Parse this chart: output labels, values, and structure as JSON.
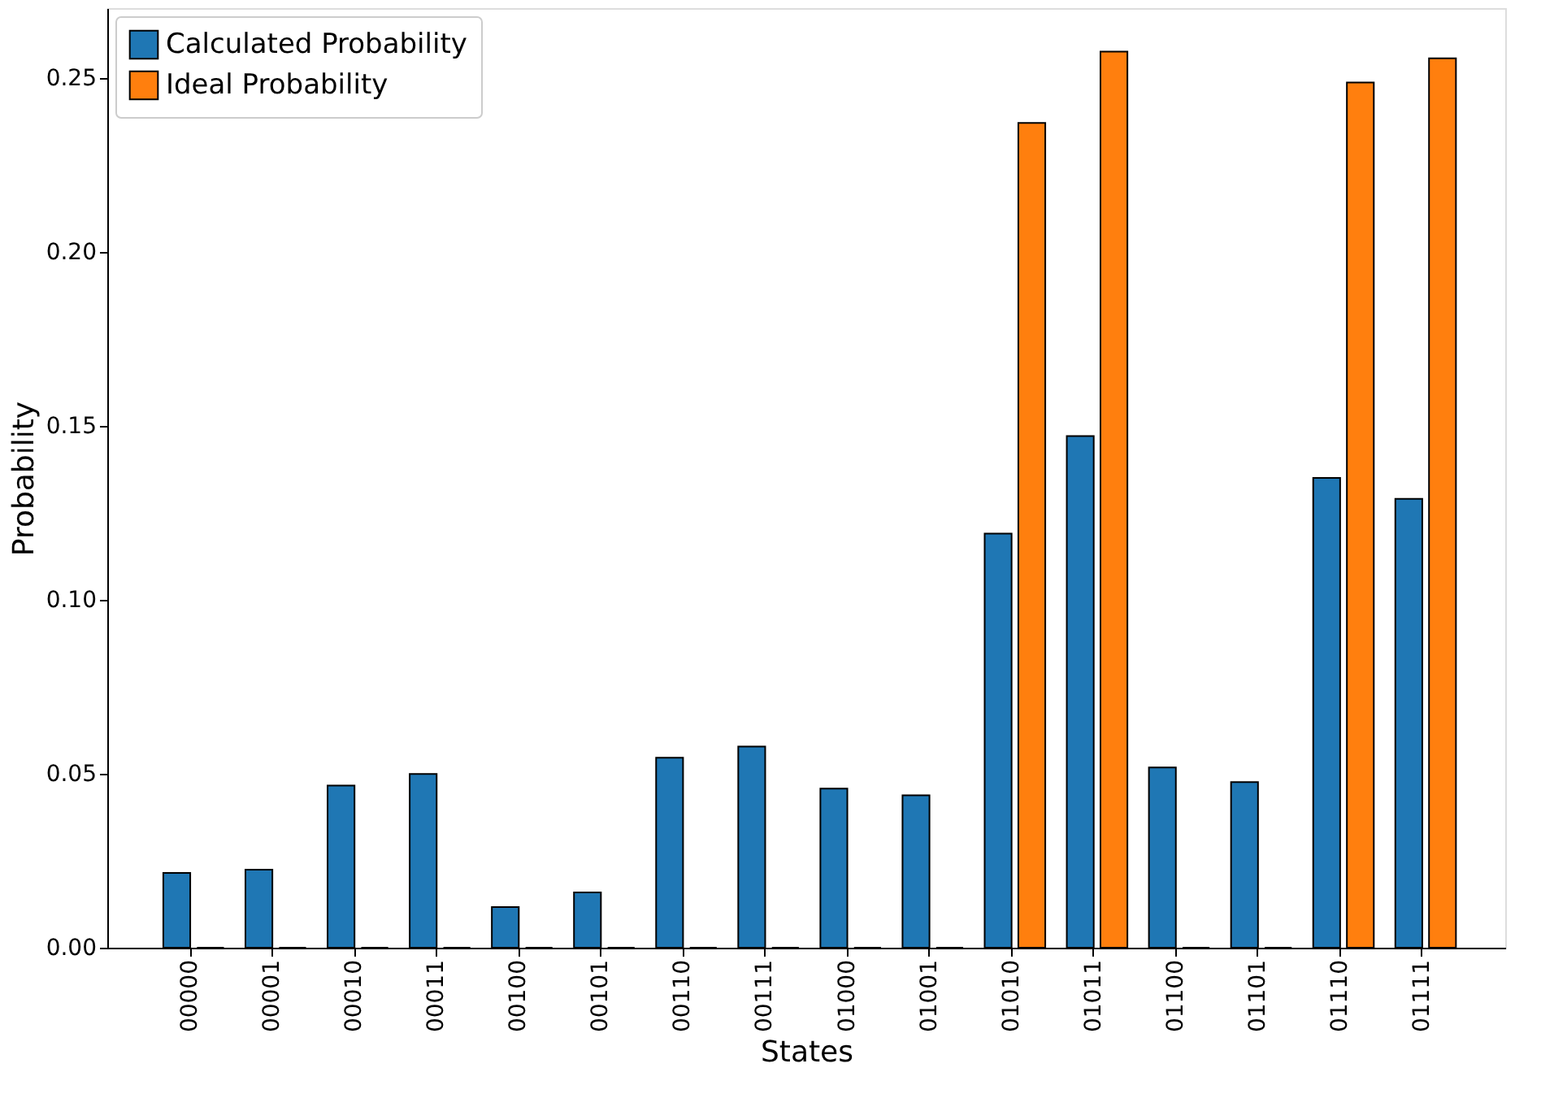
{
  "chart_data": {
    "type": "bar",
    "xlabel": "States",
    "ylabel": "Probability",
    "categories": [
      "00000",
      "00001",
      "00010",
      "00011",
      "00100",
      "00101",
      "00110",
      "00111",
      "01000",
      "01001",
      "01010",
      "01011",
      "01100",
      "01101",
      "01110",
      "01111"
    ],
    "series": [
      {
        "name": "Calculated Probability",
        "color": "#1f77b4",
        "values": [
          0.0215,
          0.0224,
          0.0466,
          0.0499,
          0.0117,
          0.0159,
          0.0546,
          0.0578,
          0.0457,
          0.0438,
          0.119,
          0.147,
          0.0518,
          0.0476,
          0.135,
          0.129
        ]
      },
      {
        "name": "Ideal Probability",
        "color": "#ff7f0e",
        "values": [
          0,
          0,
          0,
          0,
          0,
          0,
          0,
          0,
          0,
          0,
          0.237,
          0.2575,
          0,
          0,
          0.2486,
          0.2556
        ]
      }
    ],
    "ylim": [
      0,
      0.27
    ],
    "yticks": [
      {
        "value": 0,
        "label": "0.00"
      },
      {
        "value": 0.05,
        "label": "0.05"
      },
      {
        "value": 0.1,
        "label": "0.10"
      },
      {
        "value": 0.15,
        "label": "0.15"
      },
      {
        "value": 0.2,
        "label": "0.20"
      },
      {
        "value": 0.25,
        "label": "0.25"
      }
    ],
    "grid": false,
    "legend": "top left"
  }
}
